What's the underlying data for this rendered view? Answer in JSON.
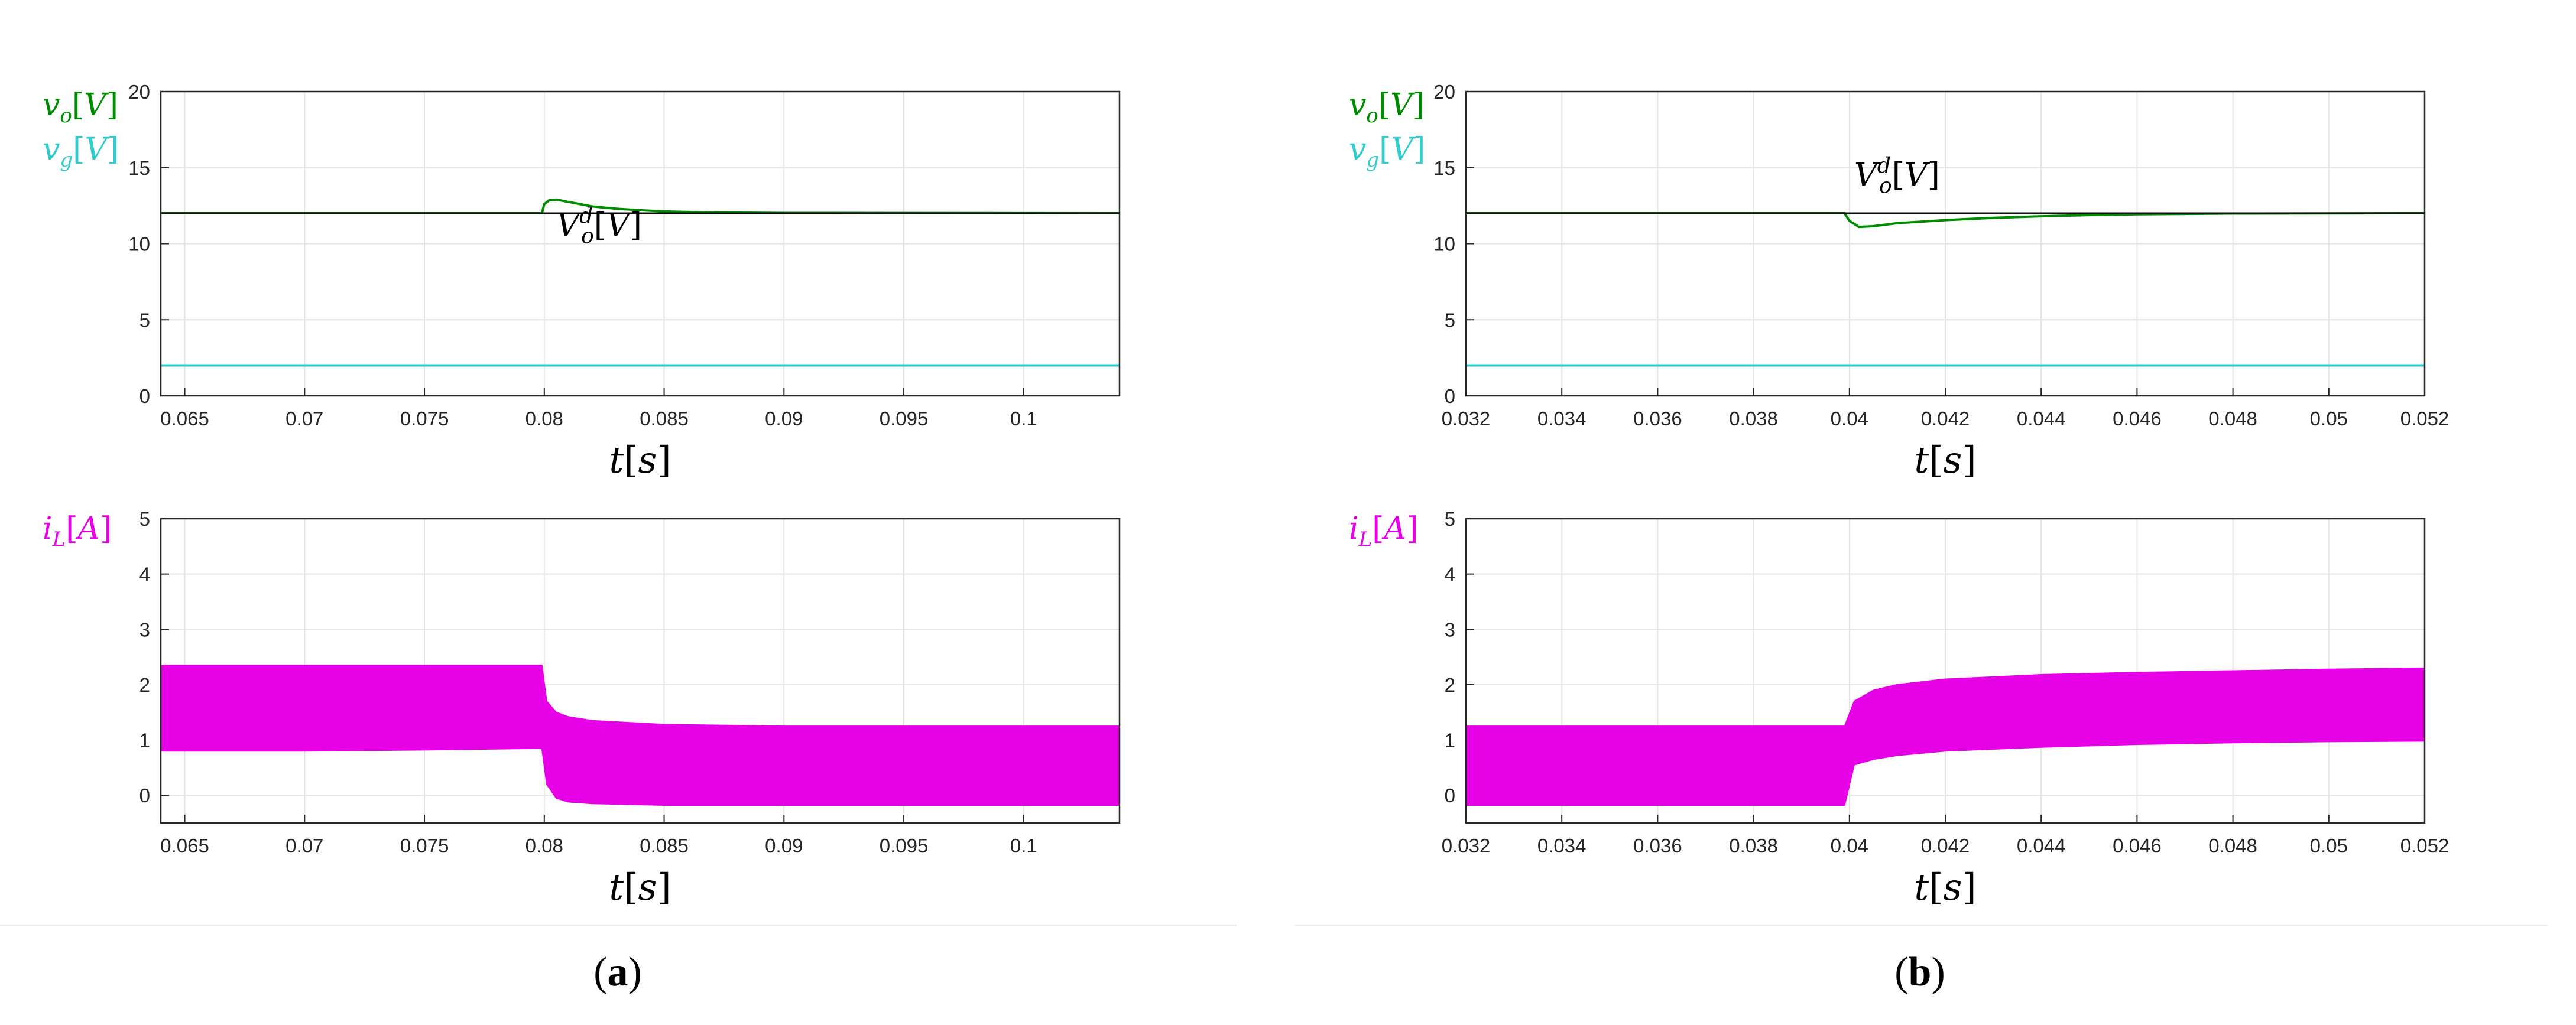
{
  "chart_data": [
    {
      "panel": "a",
      "position": "top",
      "type": "line",
      "xlim": [
        0.064,
        0.104
      ],
      "ylim": [
        0,
        20
      ],
      "xticks": [
        0.065,
        0.07,
        0.075,
        0.08,
        0.085,
        0.09,
        0.095,
        0.1
      ],
      "xtick_labels": [
        "0.065",
        "0.07",
        "0.075",
        "0.08",
        "0.085",
        "0.09",
        "0.095",
        "0.1"
      ],
      "yticks": [
        0,
        5,
        10,
        15,
        20
      ],
      "ytick_labels": [
        "0",
        "5",
        "10",
        "15",
        "20"
      ],
      "xlabel": "t[s]",
      "grid": true,
      "annotation": {
        "text": "Vo^d[V]",
        "x": 0.0805,
        "y": 10.5
      },
      "series": [
        {
          "name": "vo[V]",
          "color": "#008c00",
          "x": [
            0.064,
            0.0799,
            0.08,
            0.0802,
            0.0805,
            0.081,
            0.0815,
            0.082,
            0.083,
            0.084,
            0.085,
            0.087,
            0.09,
            0.104
          ],
          "y": [
            12.0,
            12.0,
            12.6,
            12.85,
            12.9,
            12.75,
            12.6,
            12.45,
            12.3,
            12.2,
            12.12,
            12.05,
            12.02,
            12.0
          ]
        },
        {
          "name": "Vo^d[V]",
          "color": "#111111",
          "x": [
            0.064,
            0.104
          ],
          "y": [
            12.0,
            12.0
          ]
        },
        {
          "name": "vg[V]",
          "color": "#33cccc",
          "x": [
            0.064,
            0.104
          ],
          "y": [
            2.0,
            2.0
          ]
        }
      ]
    },
    {
      "panel": "a",
      "position": "bottom",
      "type": "area",
      "xlim": [
        0.064,
        0.104
      ],
      "ylim": [
        -0.5,
        5
      ],
      "xticks": [
        0.065,
        0.07,
        0.075,
        0.08,
        0.085,
        0.09,
        0.095,
        0.1
      ],
      "xtick_labels": [
        "0.065",
        "0.07",
        "0.075",
        "0.08",
        "0.085",
        "0.09",
        "0.095",
        "0.1"
      ],
      "yticks": [
        0,
        1,
        2,
        3,
        4,
        5
      ],
      "ytick_labels": [
        "0",
        "1",
        "2",
        "3",
        "4",
        "5"
      ],
      "xlabel": "t[s]",
      "grid": true,
      "series": [
        {
          "name": "iL[A]",
          "color": "#e600e6",
          "x": [
            0.064,
            0.07,
            0.075,
            0.0799,
            0.0801,
            0.0805,
            0.081,
            0.082,
            0.085,
            0.09,
            0.095,
            0.1,
            0.104
          ],
          "max": [
            2.35,
            2.35,
            2.35,
            2.35,
            1.7,
            1.5,
            1.42,
            1.35,
            1.28,
            1.25,
            1.25,
            1.25,
            1.25
          ],
          "min": [
            0.8,
            0.8,
            0.82,
            0.85,
            0.2,
            -0.05,
            -0.12,
            -0.15,
            -0.18,
            -0.18,
            -0.18,
            -0.18,
            -0.18
          ]
        }
      ]
    },
    {
      "panel": "b",
      "position": "top",
      "type": "line",
      "xlim": [
        0.032,
        0.052
      ],
      "ylim": [
        0,
        20
      ],
      "xticks": [
        0.032,
        0.034,
        0.036,
        0.038,
        0.04,
        0.042,
        0.044,
        0.046,
        0.048,
        0.05,
        0.052
      ],
      "xtick_labels": [
        "0.032",
        "0.034",
        "0.036",
        "0.038",
        "0.04",
        "0.042",
        "0.044",
        "0.046",
        "0.048",
        "0.05",
        "0.052"
      ],
      "yticks": [
        0,
        5,
        10,
        15,
        20
      ],
      "ytick_labels": [
        "0",
        "5",
        "10",
        "15",
        "20"
      ],
      "xlabel": "t[s]",
      "grid": true,
      "annotation": {
        "text": "Vo^d[V]",
        "x": 0.0401,
        "y": 13.8
      },
      "series": [
        {
          "name": "vo[V]",
          "color": "#008c00",
          "x": [
            0.032,
            0.0399,
            0.04,
            0.0402,
            0.0405,
            0.041,
            0.042,
            0.043,
            0.044,
            0.045,
            0.046,
            0.048,
            0.052
          ],
          "y": [
            12.0,
            12.0,
            11.5,
            11.1,
            11.15,
            11.35,
            11.55,
            11.7,
            11.8,
            11.88,
            11.93,
            11.98,
            12.0
          ]
        },
        {
          "name": "Vo^d[V]",
          "color": "#111111",
          "x": [
            0.032,
            0.052
          ],
          "y": [
            12.0,
            12.0
          ]
        },
        {
          "name": "vg[V]",
          "color": "#33cccc",
          "x": [
            0.032,
            0.052
          ],
          "y": [
            2.0,
            2.0
          ]
        }
      ]
    },
    {
      "panel": "b",
      "position": "bottom",
      "type": "area",
      "xlim": [
        0.032,
        0.052
      ],
      "ylim": [
        -0.5,
        5
      ],
      "xticks": [
        0.032,
        0.034,
        0.036,
        0.038,
        0.04,
        0.042,
        0.044,
        0.046,
        0.048,
        0.05,
        0.052
      ],
      "xtick_labels": [
        "0.032",
        "0.034",
        "0.036",
        "0.038",
        "0.04",
        "0.042",
        "0.044",
        "0.046",
        "0.048",
        "0.05",
        "0.052"
      ],
      "yticks": [
        0,
        1,
        2,
        3,
        4,
        5
      ],
      "ytick_labels": [
        "0",
        "1",
        "2",
        "3",
        "4",
        "5"
      ],
      "xlabel": "t[s]",
      "grid": true,
      "series": [
        {
          "name": "iL[A]",
          "color": "#e600e6",
          "x": [
            0.032,
            0.036,
            0.0399,
            0.0401,
            0.0405,
            0.041,
            0.042,
            0.044,
            0.046,
            0.048,
            0.05,
            0.052
          ],
          "max": [
            1.25,
            1.25,
            1.25,
            1.7,
            1.9,
            2.0,
            2.1,
            2.18,
            2.22,
            2.25,
            2.28,
            2.3
          ],
          "min": [
            -0.18,
            -0.18,
            -0.18,
            0.55,
            0.65,
            0.72,
            0.8,
            0.87,
            0.92,
            0.95,
            0.97,
            0.98
          ]
        }
      ]
    }
  ],
  "legend": {
    "vo": "v_o[V]",
    "vg": "v_g[V]",
    "iL": "i_L[A]"
  },
  "captions": {
    "a": "(a)",
    "b": "(b)"
  },
  "colors": {
    "vo": "#008c00",
    "vg": "#33cccc",
    "iL": "#e600e6",
    "ref": "#111111",
    "grid": "#e4e4e4"
  }
}
